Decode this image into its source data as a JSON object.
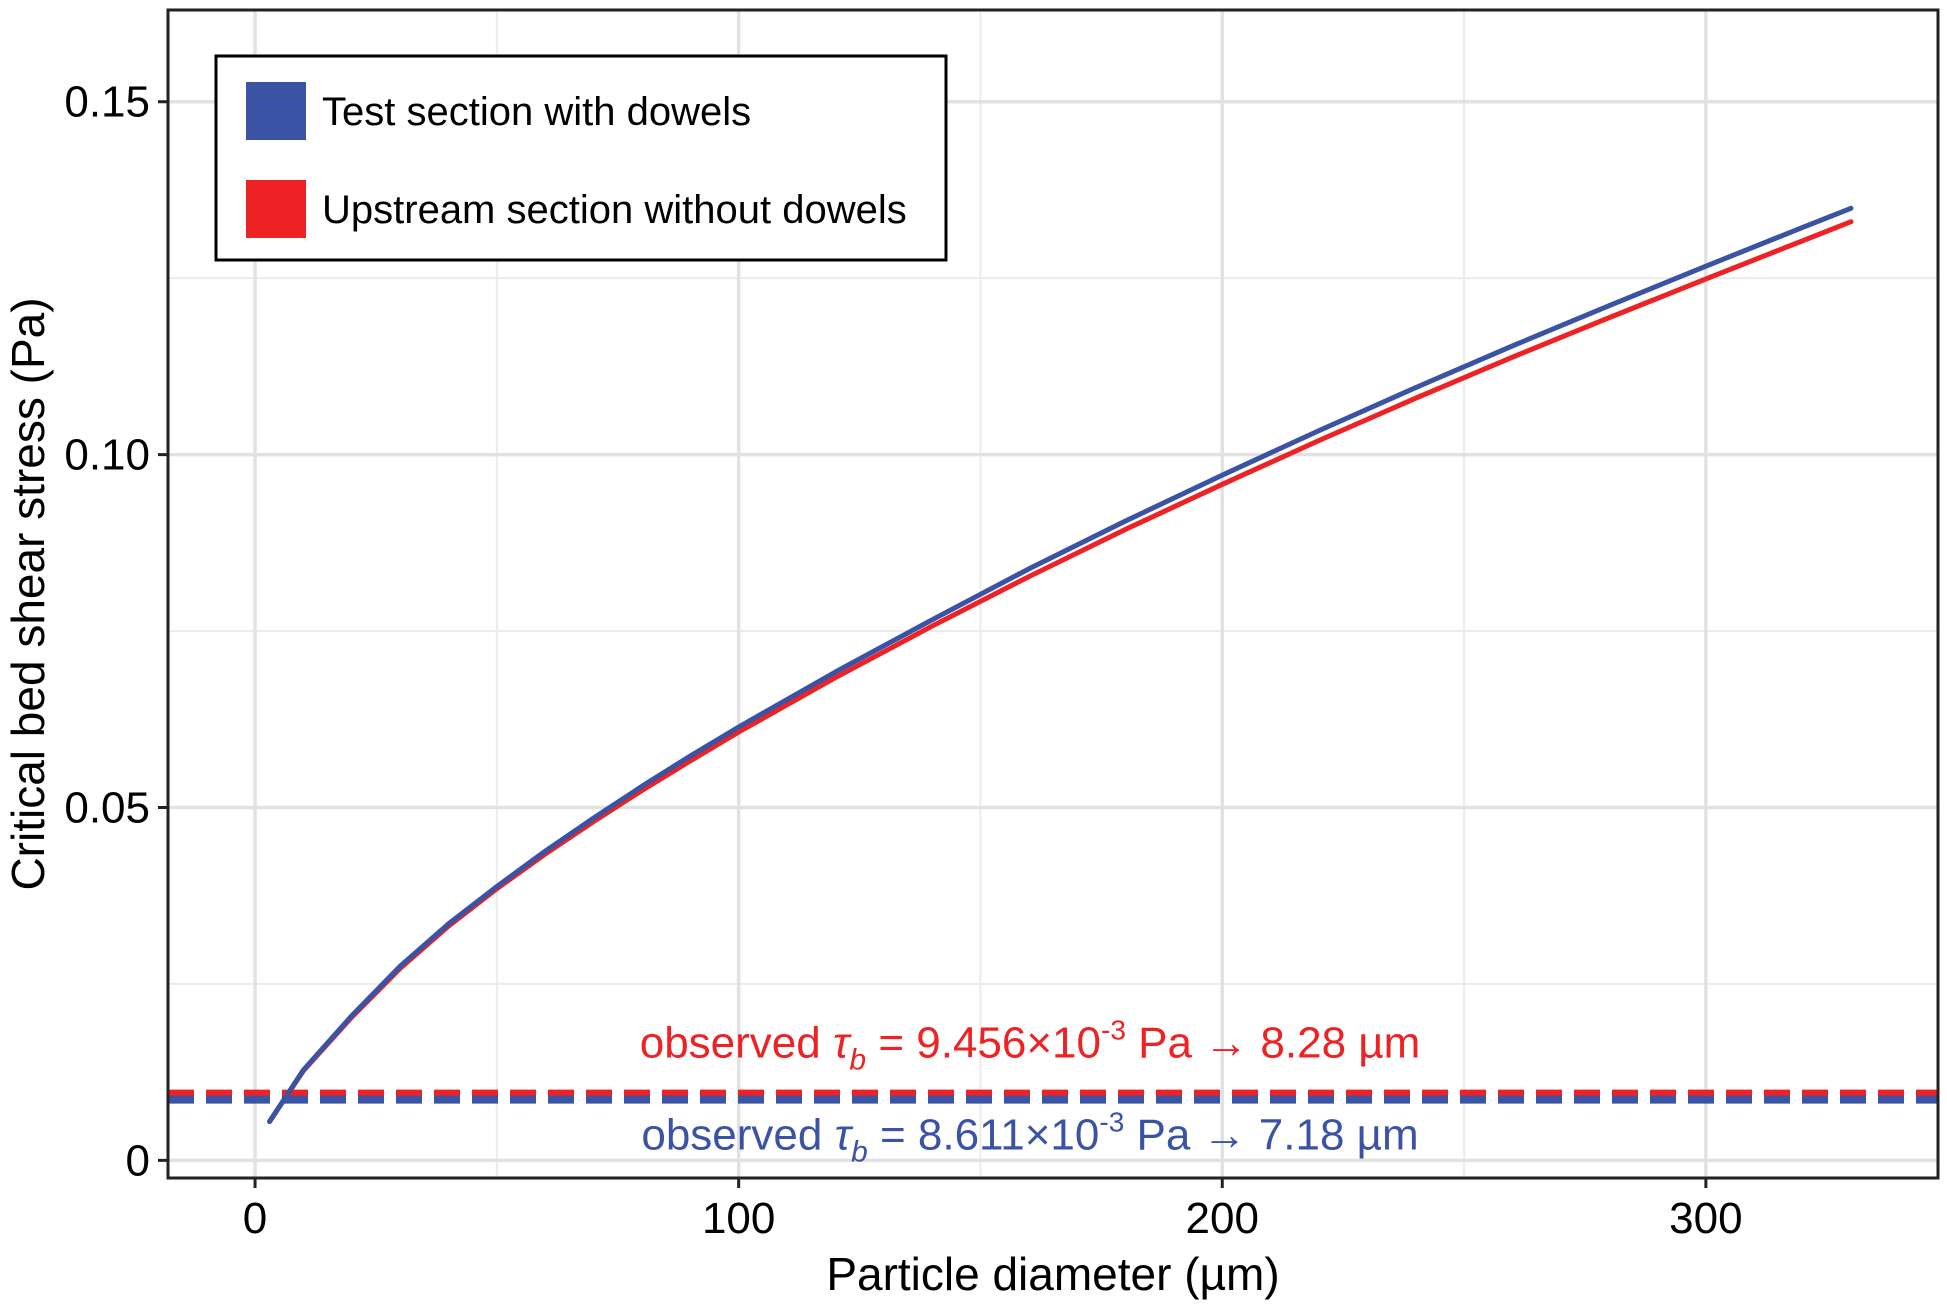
{
  "chart_data": {
    "type": "line",
    "xlabel": "Particle diameter (µm)",
    "ylabel": "Critical bed shear stress (Pa)",
    "xlim": [
      -18,
      348
    ],
    "ylim": [
      -0.0025,
      0.163
    ],
    "x_ticks": [
      0,
      100,
      200,
      300
    ],
    "x_tick_labels": [
      "0",
      "100",
      "200",
      "300"
    ],
    "y_ticks": [
      0,
      0.05,
      0.1,
      0.15
    ],
    "y_tick_labels": [
      "0",
      "0.05",
      "0.10",
      "0.15"
    ],
    "x_minor_gridlines": [
      50,
      150,
      250
    ],
    "y_minor_gridlines": [
      0.025,
      0.075,
      0.125
    ],
    "grid": true,
    "legend_position": "top-left",
    "series": [
      {
        "name": "Test section with dowels",
        "color": "#3a53a4",
        "x": [
          3,
          10,
          20,
          30,
          40,
          50,
          60,
          70,
          80,
          90,
          100,
          120,
          140,
          160,
          180,
          200,
          220,
          240,
          260,
          280,
          300,
          320,
          330
        ],
        "y": [
          0.0055,
          0.0128,
          0.0205,
          0.0275,
          0.0335,
          0.0388,
          0.0438,
          0.0485,
          0.053,
          0.0573,
          0.0614,
          0.0692,
          0.0766,
          0.0838,
          0.0906,
          0.0971,
          0.1034,
          0.1095,
          0.1154,
          0.1211,
          0.1267,
          0.1322,
          0.1349
        ]
      },
      {
        "name": "Upstream section without dowels",
        "color": "#ee2124",
        "x": [
          3,
          10,
          20,
          30,
          40,
          50,
          60,
          70,
          80,
          90,
          100,
          120,
          140,
          160,
          180,
          200,
          220,
          240,
          260,
          280,
          300,
          320,
          330
        ],
        "y": [
          0.0055,
          0.0127,
          0.0203,
          0.0272,
          0.0332,
          0.0385,
          0.0434,
          0.048,
          0.0524,
          0.0566,
          0.0607,
          0.0684,
          0.0757,
          0.0827,
          0.0894,
          0.0958,
          0.102,
          0.108,
          0.1138,
          0.1194,
          0.1249,
          0.1303,
          0.133
        ]
      }
    ],
    "reference_lines": [
      {
        "y": 0.009456,
        "color": "#ee2124",
        "style": "dashed",
        "label_prefix": "observed ",
        "label_symbol": "τ",
        "label_sub": "b",
        "label_mid": " = 9.456×10",
        "label_sup": "-3",
        "label_suffix": " Pa → 8.28 µm"
      },
      {
        "y": 0.008611,
        "color": "#3a53a4",
        "style": "dashed",
        "label_prefix": "observed ",
        "label_symbol": "τ",
        "label_sub": "b",
        "label_mid": " = 8.611×10",
        "label_sup": "-3",
        "label_suffix": " Pa → 7.18 µm"
      }
    ]
  }
}
